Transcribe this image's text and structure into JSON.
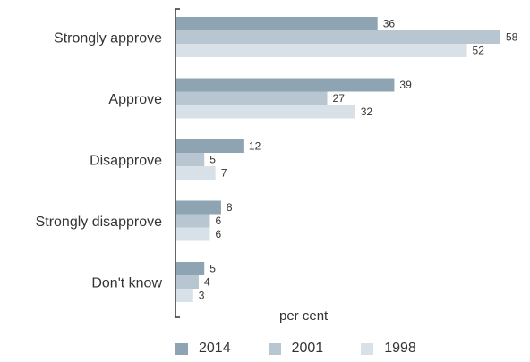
{
  "chart_data": {
    "type": "bar",
    "orientation": "horizontal",
    "categories": [
      "Strongly approve",
      "Approve",
      "Disapprove",
      "Strongly disapprove",
      "Don't know"
    ],
    "series": [
      {
        "name": "2014",
        "values": [
          36,
          39,
          12,
          8,
          5
        ],
        "color": "#8fa4b2"
      },
      {
        "name": "2001",
        "values": [
          58,
          27,
          5,
          6,
          4
        ],
        "color": "#b7c6d0"
      },
      {
        "name": "1998",
        "values": [
          52,
          32,
          7,
          6,
          3
        ],
        "color": "#d8e1e7"
      }
    ],
    "xlabel": "per cent",
    "ylabel": "",
    "xlim": [
      0,
      58
    ],
    "grid": false,
    "legend_position": "bottom"
  }
}
